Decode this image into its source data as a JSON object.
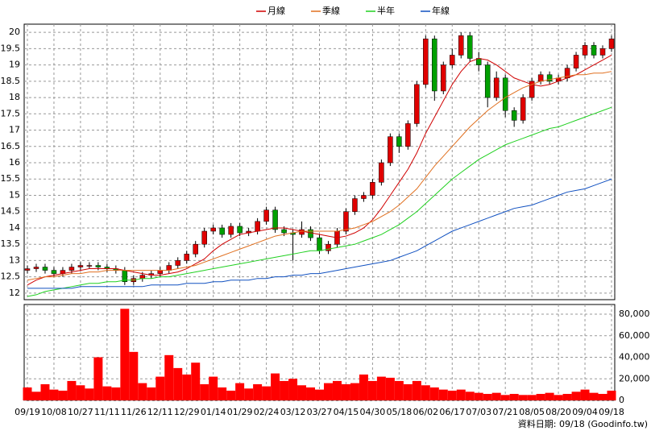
{
  "chart_data": [
    {
      "type": "candlestick",
      "open": [
        12.7,
        12.75,
        12.8,
        12.7,
        12.6,
        12.7,
        12.8,
        12.85,
        12.85,
        12.8,
        12.75,
        12.7,
        12.35,
        12.45,
        12.55,
        12.6,
        12.7,
        12.85,
        13.0,
        13.2,
        13.5,
        13.9,
        14.0,
        13.8,
        14.05,
        13.85,
        13.9,
        14.2,
        14.55,
        13.95,
        13.85,
        13.8,
        13.95,
        13.7,
        13.3,
        13.5,
        13.9,
        14.5,
        14.9,
        15.0,
        15.4,
        16.0,
        16.8,
        16.5,
        17.2,
        18.4,
        19.8,
        18.2,
        19.0,
        19.3,
        19.9,
        19.2,
        19.0,
        18.0,
        18.6,
        17.6,
        17.3,
        18.0,
        18.5,
        18.7,
        18.5,
        18.6,
        18.9,
        19.3,
        19.6,
        19.3,
        19.5
      ],
      "high": [
        12.85,
        12.9,
        12.9,
        12.8,
        12.8,
        12.9,
        12.95,
        12.95,
        12.95,
        12.9,
        12.85,
        12.8,
        12.55,
        12.65,
        12.7,
        12.8,
        12.95,
        13.1,
        13.3,
        13.6,
        14.0,
        14.1,
        14.1,
        14.15,
        14.15,
        14.0,
        14.3,
        14.65,
        14.65,
        14.05,
        13.95,
        14.2,
        14.05,
        13.8,
        13.6,
        14.0,
        14.6,
        15.0,
        15.1,
        15.5,
        16.1,
        16.9,
        16.9,
        17.3,
        18.5,
        19.9,
        19.9,
        19.1,
        19.5,
        20.0,
        20.0,
        19.4,
        19.1,
        18.8,
        18.7,
        17.7,
        18.1,
        18.6,
        18.8,
        18.8,
        18.7,
        19.0,
        19.4,
        19.7,
        19.7,
        19.6,
        19.9
      ],
      "low": [
        12.6,
        12.65,
        12.6,
        12.5,
        12.5,
        12.6,
        12.7,
        12.75,
        12.7,
        12.65,
        12.6,
        12.25,
        12.25,
        12.35,
        12.45,
        12.5,
        12.6,
        12.75,
        12.9,
        13.1,
        13.4,
        13.8,
        13.7,
        13.7,
        13.75,
        13.75,
        13.8,
        14.1,
        13.85,
        13.75,
        13.0,
        13.7,
        13.6,
        13.2,
        13.2,
        13.4,
        13.8,
        14.4,
        14.8,
        14.9,
        15.3,
        15.9,
        16.3,
        16.4,
        17.1,
        18.3,
        17.9,
        18.1,
        18.9,
        19.2,
        19.1,
        18.8,
        17.7,
        17.9,
        17.4,
        17.1,
        17.2,
        17.9,
        18.4,
        18.4,
        18.4,
        18.5,
        18.8,
        19.2,
        19.2,
        19.2,
        19.4
      ],
      "close": [
        12.75,
        12.8,
        12.7,
        12.6,
        12.7,
        12.8,
        12.85,
        12.85,
        12.8,
        12.75,
        12.7,
        12.35,
        12.45,
        12.55,
        12.6,
        12.7,
        12.85,
        13.0,
        13.2,
        13.5,
        13.9,
        14.0,
        13.8,
        14.05,
        13.85,
        13.9,
        14.2,
        14.55,
        13.95,
        13.85,
        13.8,
        13.95,
        13.7,
        13.3,
        13.5,
        13.9,
        14.5,
        14.9,
        15.0,
        15.4,
        16.0,
        16.8,
        16.5,
        17.2,
        18.4,
        19.8,
        18.2,
        19.0,
        19.3,
        19.9,
        19.2,
        19.0,
        18.0,
        18.6,
        17.6,
        17.3,
        18.0,
        18.5,
        18.7,
        18.5,
        18.6,
        18.9,
        19.3,
        19.6,
        19.3,
        19.5,
        19.8
      ],
      "up_color": "#e00000",
      "down_color": "#00a000",
      "series": [
        {
          "name": "月線",
          "color": "#d00000",
          "values": [
            12.25,
            12.4,
            12.5,
            12.55,
            12.6,
            12.65,
            12.7,
            12.75,
            12.75,
            12.75,
            12.75,
            12.7,
            12.65,
            12.6,
            12.55,
            12.55,
            12.6,
            12.65,
            12.75,
            12.9,
            13.05,
            13.3,
            13.5,
            13.65,
            13.8,
            13.85,
            13.9,
            13.95,
            14.0,
            14.0,
            13.95,
            13.9,
            13.85,
            13.8,
            13.75,
            13.7,
            13.75,
            13.85,
            14.0,
            14.25,
            14.6,
            15.0,
            15.4,
            15.8,
            16.3,
            16.9,
            17.4,
            17.9,
            18.4,
            18.8,
            19.1,
            19.2,
            19.15,
            19.0,
            18.8,
            18.6,
            18.5,
            18.4,
            18.35,
            18.4,
            18.5,
            18.6,
            18.7,
            18.85,
            19.0,
            19.15,
            19.3
          ]
        },
        {
          "name": "季線",
          "color": "#e07020",
          "values": [
            12.4,
            12.45,
            12.5,
            12.5,
            12.55,
            12.6,
            12.6,
            12.65,
            12.65,
            12.7,
            12.7,
            12.7,
            12.7,
            12.7,
            12.7,
            12.7,
            12.7,
            12.75,
            12.8,
            12.85,
            12.95,
            13.05,
            13.15,
            13.25,
            13.35,
            13.45,
            13.55,
            13.65,
            13.75,
            13.8,
            13.85,
            13.9,
            13.9,
            13.9,
            13.9,
            13.9,
            13.95,
            14.0,
            14.1,
            14.2,
            14.35,
            14.5,
            14.7,
            14.95,
            15.2,
            15.55,
            15.9,
            16.2,
            16.5,
            16.8,
            17.1,
            17.35,
            17.6,
            17.8,
            18.0,
            18.15,
            18.3,
            18.4,
            18.5,
            18.55,
            18.6,
            18.65,
            18.7,
            18.7,
            18.75,
            18.75,
            18.8
          ]
        },
        {
          "name": "半年",
          "color": "#20d020",
          "values": [
            11.9,
            11.95,
            12.05,
            12.1,
            12.15,
            12.2,
            12.25,
            12.3,
            12.3,
            12.35,
            12.35,
            12.4,
            12.4,
            12.45,
            12.45,
            12.5,
            12.5,
            12.55,
            12.6,
            12.65,
            12.7,
            12.75,
            12.8,
            12.85,
            12.9,
            12.95,
            13.0,
            13.05,
            13.1,
            13.15,
            13.2,
            13.25,
            13.3,
            13.3,
            13.35,
            13.4,
            13.45,
            13.5,
            13.6,
            13.7,
            13.8,
            13.95,
            14.1,
            14.3,
            14.5,
            14.75,
            15.0,
            15.25,
            15.5,
            15.7,
            15.9,
            16.1,
            16.25,
            16.4,
            16.55,
            16.65,
            16.75,
            16.85,
            16.95,
            17.05,
            17.1,
            17.2,
            17.3,
            17.4,
            17.5,
            17.6,
            17.7
          ]
        },
        {
          "name": "年線",
          "color": "#1050c0",
          "values": [
            12.15,
            12.15,
            12.15,
            12.15,
            12.15,
            12.15,
            12.2,
            12.2,
            12.2,
            12.2,
            12.2,
            12.2,
            12.2,
            12.2,
            12.25,
            12.25,
            12.25,
            12.25,
            12.3,
            12.3,
            12.3,
            12.35,
            12.35,
            12.4,
            12.4,
            12.4,
            12.45,
            12.45,
            12.5,
            12.5,
            12.55,
            12.55,
            12.6,
            12.6,
            12.65,
            12.7,
            12.75,
            12.8,
            12.85,
            12.9,
            12.95,
            13.0,
            13.1,
            13.2,
            13.3,
            13.45,
            13.6,
            13.75,
            13.9,
            14.0,
            14.1,
            14.2,
            14.3,
            14.4,
            14.5,
            14.6,
            14.65,
            14.7,
            14.8,
            14.9,
            15.0,
            15.1,
            15.15,
            15.2,
            15.3,
            15.4,
            15.5
          ]
        }
      ],
      "ylim": [
        11.8,
        20.25
      ],
      "yticks": [
        12,
        12.5,
        13,
        13.5,
        14,
        14.5,
        15,
        15.5,
        16,
        16.5,
        17,
        17.5,
        18,
        18.5,
        19,
        19.5,
        20
      ],
      "grid": true
    },
    {
      "type": "bar",
      "categories": [
        "09/19",
        null,
        null,
        "10/08",
        null,
        null,
        "10/27",
        null,
        null,
        "11/11",
        null,
        null,
        "11/26",
        null,
        null,
        "12/11",
        null,
        null,
        "12/29",
        null,
        null,
        "01/14",
        null,
        null,
        "01/29",
        null,
        null,
        "02/24",
        null,
        null,
        "03/12",
        null,
        null,
        "03/27",
        null,
        null,
        "04/15",
        null,
        null,
        "04/30",
        null,
        null,
        "05/18",
        null,
        null,
        "06/02",
        null,
        null,
        "06/17",
        null,
        null,
        "07/03",
        null,
        null,
        "07/21",
        null,
        null,
        "08/05",
        null,
        null,
        "08/20",
        null,
        null,
        "09/04",
        null,
        null,
        "09/18"
      ],
      "values": [
        12000,
        8000,
        15000,
        10000,
        9000,
        18000,
        14000,
        11000,
        40000,
        13000,
        12000,
        85000,
        45000,
        16000,
        12000,
        22000,
        42000,
        30000,
        24000,
        35000,
        15000,
        22000,
        12000,
        9000,
        16000,
        11000,
        15000,
        13000,
        25000,
        18000,
        20000,
        14000,
        12000,
        10000,
        16000,
        18000,
        15000,
        16000,
        24000,
        18000,
        22000,
        21000,
        18000,
        15000,
        18000,
        14000,
        12000,
        10000,
        9000,
        10000,
        8000,
        7000,
        6000,
        7000,
        5000,
        6000,
        5000,
        5000,
        6000,
        7000,
        5000,
        6000,
        8000,
        10000,
        7000,
        6000,
        9000
      ],
      "color": "#ff0000",
      "ylim": [
        0,
        89000
      ],
      "yticks": [
        0,
        {
          "value": 20000,
          "label": "20,000"
        },
        {
          "value": 40000,
          "label": "40,000"
        },
        {
          "value": 60000,
          "label": "60,000"
        },
        {
          "value": 80000,
          "label": "80,000"
        }
      ],
      "grid": true
    }
  ],
  "footer": "資料日期: 09/18 (Goodinfo.tw)"
}
